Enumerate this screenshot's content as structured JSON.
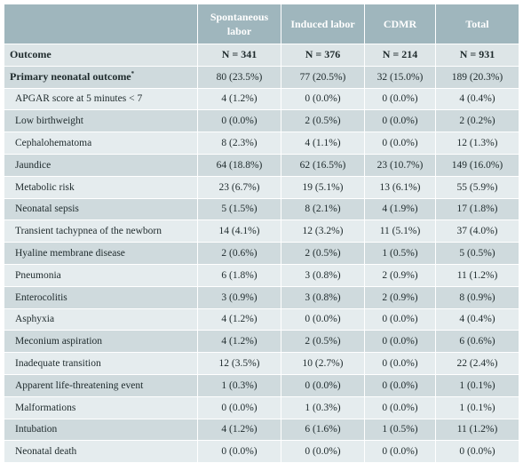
{
  "table": {
    "columns": [
      "",
      "Spontaneous labor",
      "Induced labor",
      "CDMR",
      "Total"
    ],
    "header_row": {
      "label": "Outcome",
      "values": [
        "N = 341",
        "N = 376",
        "N = 214",
        "N = 931"
      ]
    },
    "primary_row": {
      "label": "Primary neonatal outcome",
      "footnote": "*",
      "values": [
        "80 (23.5%)",
        "77 (20.5%)",
        "32 (15.0%)",
        "189 (20.3%)"
      ]
    },
    "rows": [
      {
        "label": "APGAR score at 5 minutes < 7",
        "values": [
          "4 (1.2%)",
          "0 (0.0%)",
          "0 (0.0%)",
          "4 (0.4%)"
        ]
      },
      {
        "label": "Low birthweight",
        "values": [
          "0 (0.0%)",
          "2 (0.5%)",
          "0 (0.0%)",
          "2 (0.2%)"
        ]
      },
      {
        "label": "Cephalohematoma",
        "values": [
          "8 (2.3%)",
          "4 (1.1%)",
          "0 (0.0%)",
          "12 (1.3%)"
        ]
      },
      {
        "label": "Jaundice",
        "values": [
          "64 (18.8%)",
          "62 (16.5%)",
          "23 (10.7%)",
          "149 (16.0%)"
        ]
      },
      {
        "label": "Metabolic risk",
        "values": [
          "23 (6.7%)",
          "19 (5.1%)",
          "13 (6.1%)",
          "55 (5.9%)"
        ]
      },
      {
        "label": "Neonatal sepsis",
        "values": [
          "5 (1.5%)",
          "8 (2.1%)",
          "4 (1.9%)",
          "17 (1.8%)"
        ]
      },
      {
        "label": "Transient tachypnea of the newborn",
        "values": [
          "14 (4.1%)",
          "12 (3.2%)",
          "11 (5.1%)",
          "37 (4.0%)"
        ]
      },
      {
        "label": "Hyaline membrane disease",
        "values": [
          "2 (0.6%)",
          "2 (0.5%)",
          "1 (0.5%)",
          "5 (0.5%)"
        ]
      },
      {
        "label": "Pneumonia",
        "values": [
          "6 (1.8%)",
          "3 (0.8%)",
          "2 (0.9%)",
          "11 (1.2%)"
        ]
      },
      {
        "label": "Enterocolitis",
        "values": [
          "3 (0.9%)",
          "3 (0.8%)",
          "2 (0.9%)",
          "8 (0.9%)"
        ]
      },
      {
        "label": "Asphyxia",
        "values": [
          "4 (1.2%)",
          "0 (0.0%)",
          "0 (0.0%)",
          "4 (0.4%)"
        ]
      },
      {
        "label": "Meconium aspiration",
        "values": [
          "4 (1.2%)",
          "2 (0.5%)",
          "0 (0.0%)",
          "6 (0.6%)"
        ]
      },
      {
        "label": "Inadequate transition",
        "values": [
          "12 (3.5%)",
          "10 (2.7%)",
          "0 (0.0%)",
          "22 (2.4%)"
        ]
      },
      {
        "label": "Apparent life-threatening event",
        "values": [
          "1 (0.3%)",
          "0 (0.0%)",
          "0 (0.0%)",
          "1 (0.1%)"
        ]
      },
      {
        "label": "Malformations",
        "values": [
          "0 (0.0%)",
          "1 (0.3%)",
          "0 (0.0%)",
          "1 (0.1%)"
        ]
      },
      {
        "label": "Intubation",
        "values": [
          "4 (1.2%)",
          "6 (1.6%)",
          "1 (0.5%)",
          "11 (1.2%)"
        ]
      },
      {
        "label": "Neonatal death",
        "values": [
          "0 (0.0%)",
          "0 (0.0%)",
          "0 (0.0%)",
          "0 (0.0%)"
        ]
      }
    ]
  },
  "colors": {
    "header_bg": "#9fb6bd",
    "row_light": "#e5ecee",
    "row_dark": "#cfdadd"
  }
}
